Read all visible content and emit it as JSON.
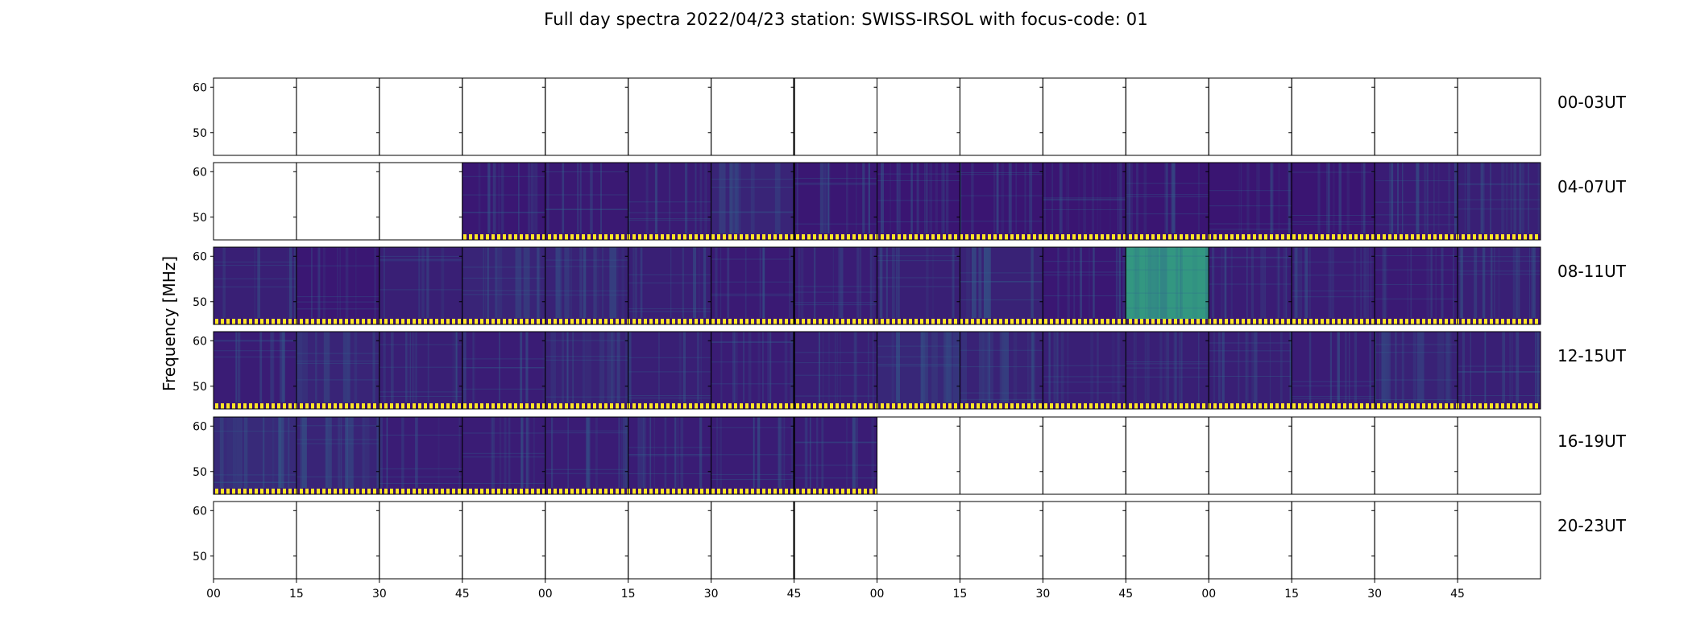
{
  "title": "Full day spectra 2022/04/23 station: SWISS-IRSOL with focus-code: 01",
  "chart_data": {
    "type": "heatmap",
    "title": "Full day spectra 2022/04/23 station: SWISS-IRSOL with focus-code: 01",
    "ylabel": "Frequency [MHz]",
    "xlabel": "",
    "ylim": [
      45,
      62
    ],
    "y_ticks": [
      50,
      60
    ],
    "x_tick_labels": [
      "00",
      "15",
      "30",
      "45",
      "00",
      "15",
      "30",
      "45",
      "00",
      "15",
      "30",
      "45",
      "00",
      "15",
      "30",
      "45"
    ],
    "panels_per_row": 16,
    "panel_minutes": 15,
    "colors": {
      "background": "#40206a",
      "dark": "#3b0f70",
      "mid": "#31688e",
      "bright": "#35b779",
      "flare": "#fde725"
    },
    "rows": [
      {
        "label": "00-03UT",
        "has_data": [
          0,
          0,
          0,
          0,
          0,
          0,
          0,
          0,
          0,
          0,
          0,
          0,
          0,
          0,
          0,
          0
        ],
        "intensity": [
          0,
          0,
          0,
          0,
          0,
          0,
          0,
          0,
          0,
          0,
          0,
          0,
          0,
          0,
          0,
          0
        ]
      },
      {
        "label": "04-07UT",
        "has_data": [
          0,
          0,
          0,
          1,
          1,
          1,
          1,
          1,
          1,
          1,
          1,
          1,
          1,
          1,
          1,
          1
        ],
        "intensity": [
          0,
          0,
          0,
          0.15,
          0.18,
          0.22,
          0.4,
          0.15,
          0.12,
          0.12,
          0.12,
          0.12,
          0.12,
          0.12,
          0.25,
          0.3
        ]
      },
      {
        "label": "08-11UT",
        "has_data": [
          1,
          1,
          1,
          1,
          1,
          1,
          1,
          1,
          1,
          1,
          1,
          1,
          1,
          1,
          1,
          1
        ],
        "intensity": [
          0.3,
          0.15,
          0.3,
          0.4,
          0.35,
          0.3,
          0.2,
          0.25,
          0.3,
          0.35,
          0.15,
          0.85,
          0.25,
          0.25,
          0.2,
          0.3
        ]
      },
      {
        "label": "12-15UT",
        "has_data": [
          1,
          1,
          1,
          1,
          1,
          1,
          1,
          1,
          1,
          1,
          1,
          1,
          1,
          1,
          1,
          1
        ],
        "intensity": [
          0.25,
          0.4,
          0.3,
          0.25,
          0.35,
          0.3,
          0.25,
          0.3,
          0.45,
          0.35,
          0.3,
          0.3,
          0.3,
          0.25,
          0.35,
          0.3
        ]
      },
      {
        "label": "16-19UT",
        "has_data": [
          1,
          1,
          1,
          1,
          1,
          1,
          1,
          1,
          0,
          0,
          0,
          0,
          0,
          0,
          0,
          0
        ],
        "intensity": [
          0.5,
          0.4,
          0.25,
          0.25,
          0.25,
          0.25,
          0.25,
          0.25,
          0,
          0,
          0,
          0,
          0,
          0,
          0,
          0
        ]
      },
      {
        "label": "20-23UT",
        "has_data": [
          0,
          0,
          0,
          0,
          0,
          0,
          0,
          0,
          0,
          0,
          0,
          0,
          0,
          0,
          0,
          0
        ],
        "intensity": [
          0,
          0,
          0,
          0,
          0,
          0,
          0,
          0,
          0,
          0,
          0,
          0,
          0,
          0,
          0,
          0
        ]
      }
    ]
  }
}
